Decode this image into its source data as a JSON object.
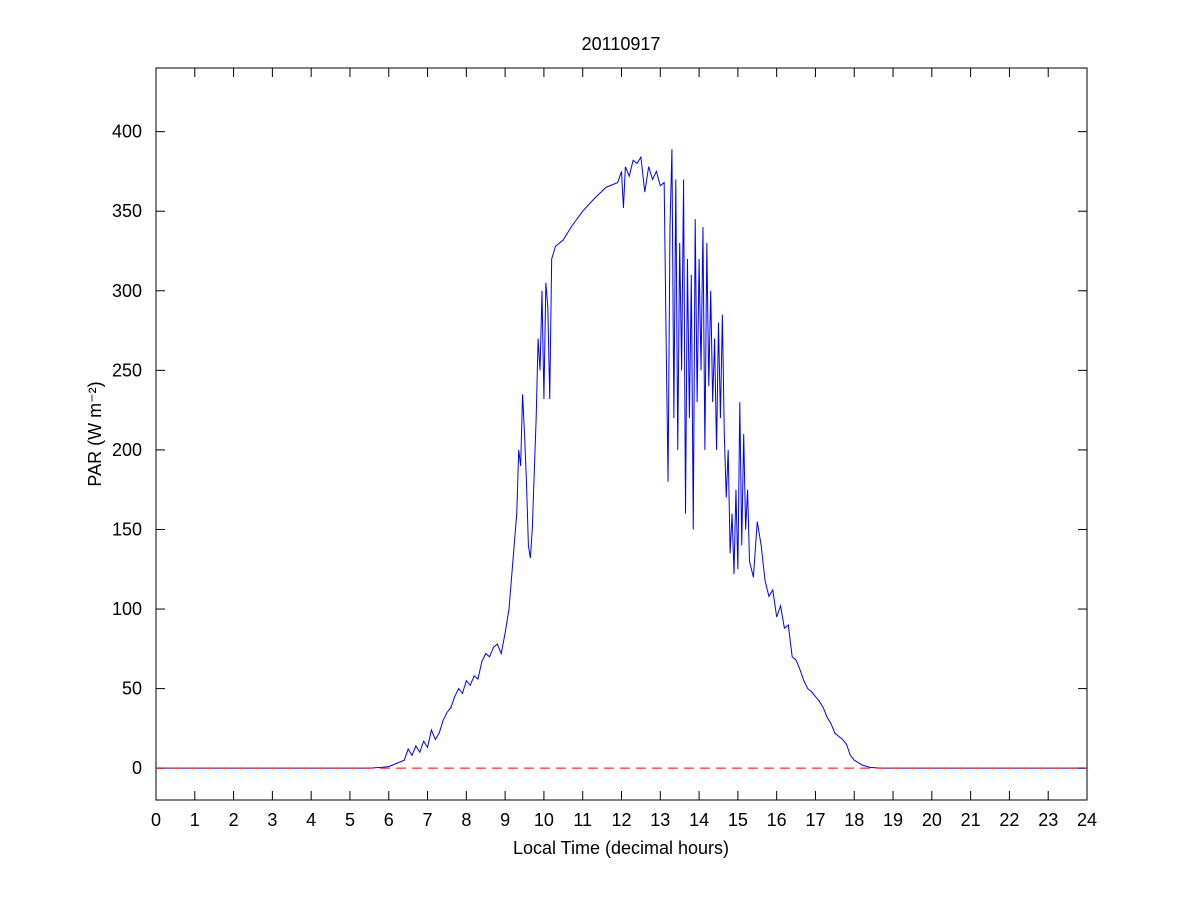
{
  "chart_data": {
    "type": "line",
    "title": "20110917",
    "xlabel": "Local Time (decimal hours)",
    "ylabel": "PAR (W m⁻²)",
    "xlim": [
      0,
      24
    ],
    "ylim": [
      -20,
      440
    ],
    "xticks": [
      0,
      1,
      2,
      3,
      4,
      5,
      6,
      7,
      8,
      9,
      10,
      11,
      12,
      13,
      14,
      15,
      16,
      17,
      18,
      19,
      20,
      21,
      22,
      23,
      24
    ],
    "yticks": [
      0,
      50,
      100,
      150,
      200,
      250,
      300,
      350,
      400
    ],
    "grid": false,
    "series": [
      {
        "color": "#0000ff",
        "dash": "solid",
        "x": [
          0,
          5.5,
          5.8,
          6.0,
          6.2,
          6.4,
          6.5,
          6.6,
          6.7,
          6.8,
          6.9,
          7.0,
          7.1,
          7.2,
          7.3,
          7.4,
          7.5,
          7.6,
          7.7,
          7.8,
          7.9,
          8.0,
          8.1,
          8.2,
          8.3,
          8.4,
          8.5,
          8.6,
          8.7,
          8.8,
          8.9,
          9.0,
          9.1,
          9.2,
          9.3,
          9.35,
          9.4,
          9.45,
          9.5,
          9.55,
          9.6,
          9.65,
          9.7,
          9.8,
          9.85,
          9.9,
          9.95,
          10.0,
          10.05,
          10.1,
          10.15,
          10.2,
          10.3,
          10.5,
          10.7,
          11.0,
          11.3,
          11.6,
          11.9,
          12.0,
          12.05,
          12.1,
          12.2,
          12.3,
          12.4,
          12.5,
          12.6,
          12.7,
          12.8,
          12.9,
          13.0,
          13.1,
          13.15,
          13.2,
          13.25,
          13.3,
          13.35,
          13.4,
          13.45,
          13.5,
          13.55,
          13.6,
          13.65,
          13.7,
          13.75,
          13.8,
          13.85,
          13.9,
          13.95,
          14.0,
          14.05,
          14.1,
          14.15,
          14.2,
          14.25,
          14.3,
          14.35,
          14.4,
          14.45,
          14.5,
          14.55,
          14.6,
          14.65,
          14.7,
          14.75,
          14.8,
          14.85,
          14.9,
          14.95,
          15.0,
          15.05,
          15.1,
          15.15,
          15.2,
          15.25,
          15.3,
          15.4,
          15.5,
          15.6,
          15.7,
          15.8,
          15.9,
          16.0,
          16.1,
          16.2,
          16.3,
          16.4,
          16.5,
          16.6,
          16.7,
          16.8,
          16.9,
          17.0,
          17.1,
          17.2,
          17.3,
          17.4,
          17.5,
          17.6,
          17.7,
          17.8,
          17.9,
          18.0,
          18.2,
          18.4,
          18.7,
          24
        ],
        "values": [
          0,
          0,
          0.5,
          1,
          3,
          5,
          12,
          8,
          14,
          10,
          17,
          13,
          24,
          18,
          22,
          30,
          35,
          38,
          45,
          50,
          47,
          55,
          52,
          58,
          56,
          67,
          72,
          70,
          76,
          78,
          72,
          85,
          100,
          130,
          160,
          200,
          190,
          235,
          210,
          180,
          140,
          132,
          150,
          220,
          270,
          250,
          300,
          232,
          305,
          290,
          232,
          320,
          328,
          332,
          340,
          350,
          358,
          365,
          368,
          375,
          352,
          378,
          372,
          382,
          380,
          384,
          362,
          378,
          370,
          375,
          366,
          368,
          270,
          180,
          340,
          389,
          220,
          370,
          200,
          330,
          250,
          370,
          160,
          320,
          220,
          310,
          150,
          345,
          230,
          320,
          250,
          340,
          200,
          330,
          240,
          300,
          230,
          270,
          200,
          280,
          220,
          285,
          210,
          170,
          200,
          135,
          160,
          122,
          175,
          125,
          230,
          140,
          210,
          150,
          175,
          130,
          120,
          155,
          140,
          118,
          108,
          112,
          95,
          102,
          88,
          90,
          70,
          68,
          62,
          55,
          50,
          48,
          45,
          42,
          38,
          32,
          28,
          22,
          20,
          18,
          15,
          8,
          5,
          2,
          0.5,
          0,
          0
        ]
      },
      {
        "color": "#ff0000",
        "dash": "dashed",
        "x": [
          0,
          24
        ],
        "values": [
          0,
          0
        ]
      }
    ]
  }
}
